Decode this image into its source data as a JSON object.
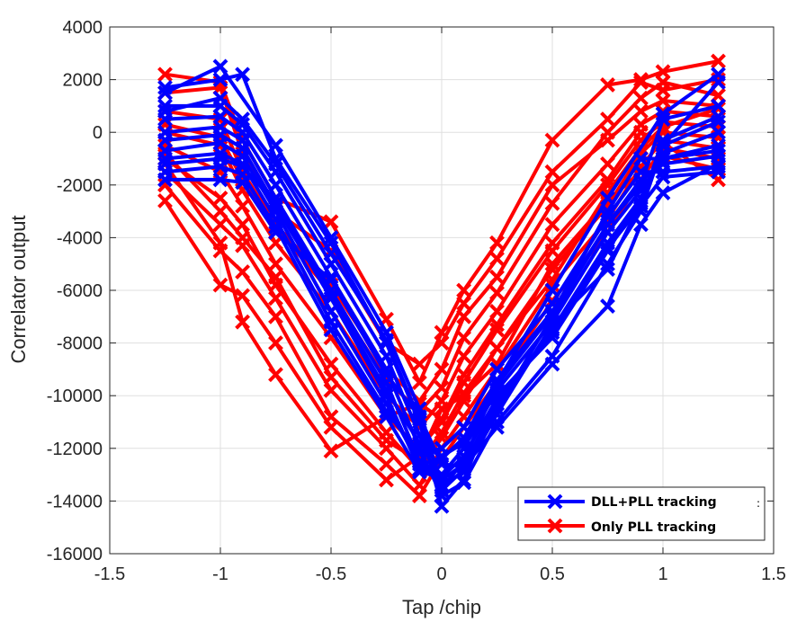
{
  "chart_data": {
    "type": "line",
    "title": "",
    "xlabel": "Tap /chip",
    "ylabel": "Correlator output",
    "xlim": [
      -1.5,
      1.5
    ],
    "ylim": [
      -16000,
      4000
    ],
    "xticks": [
      -1.5,
      -1,
      -0.5,
      0,
      0.5,
      1,
      1.5
    ],
    "xtick_labels": [
      "-1.5",
      "-1",
      "-0.5",
      "0",
      "0.5",
      "1",
      "1.5"
    ],
    "yticks": [
      4000,
      2000,
      0,
      -2000,
      -4000,
      -6000,
      -8000,
      -10000,
      -12000,
      -14000,
      -16000
    ],
    "ytick_labels": [
      "4000",
      "2000",
      "0",
      "-2000",
      "-4000",
      "-6000",
      "-8000",
      "-10000",
      "-12000",
      "-14000",
      "-16000"
    ],
    "grid": true,
    "legend_position": "bottom-right",
    "legend_extra_mark": ":",
    "series": [
      {
        "name": "DLL+PLL tracking",
        "color": "#0000ff",
        "marker": "x",
        "curves": [
          {
            "x": [
              -1.25,
              -1,
              -0.75,
              -0.5,
              -0.25,
              -0.1,
              0,
              0.1,
              0.25,
              0.5,
              0.75,
              1,
              1.25
            ],
            "y": [
              1500,
              2500,
              -500,
              -4000,
              -7600,
              -10500,
              -13500,
              -12500,
              -9500,
              -6000,
              -2500,
              700,
              2200
            ]
          },
          {
            "x": [
              -1.25,
              -1,
              -0.9,
              -0.75,
              -0.5,
              -0.25,
              -0.1,
              0,
              0.1,
              0.25,
              0.5,
              0.75,
              0.9,
              1,
              1.25
            ],
            "y": [
              1700,
              2000,
              2200,
              -1000,
              -4200,
              -8000,
              -11000,
              -14200,
              -13200,
              -10000,
              -7800,
              -4500,
              -2500,
              -500,
              1900
            ]
          },
          {
            "x": [
              -1.25,
              -1,
              -0.9,
              -0.75,
              -0.5,
              -0.25,
              -0.1,
              0,
              0.1,
              0.25,
              0.5,
              0.75,
              0.9,
              1,
              1.25
            ],
            "y": [
              1000,
              1000,
              300,
              -1500,
              -5000,
              -8500,
              -11500,
              -13600,
              -12800,
              -10500,
              -7000,
              -3500,
              -2000,
              500,
              1000
            ]
          },
          {
            "x": [
              -1.25,
              -1,
              -0.9,
              -0.75,
              -0.5,
              -0.25,
              -0.1,
              0,
              0.1,
              0.25,
              0.5,
              0.75,
              0.9,
              1,
              1.25
            ],
            "y": [
              500,
              600,
              0,
              -2000,
              -5500,
              -9000,
              -12000,
              -13800,
              -13300,
              -11000,
              -8500,
              -5000,
              -3000,
              -500,
              400
            ]
          },
          {
            "x": [
              -1.25,
              -1,
              -0.9,
              -0.75,
              -0.5,
              -0.25,
              -0.1,
              0,
              0.1,
              0.25,
              0.5,
              0.75,
              0.9,
              1,
              1.25
            ],
            "y": [
              0,
              200,
              -300,
              -2500,
              -6000,
              -9500,
              -12500,
              -13200,
              -12600,
              -10300,
              -7500,
              -4200,
              -2500,
              -800,
              0
            ]
          },
          {
            "x": [
              -1.25,
              -1,
              -0.9,
              -0.75,
              -0.5,
              -0.25,
              -0.1,
              0,
              0.1,
              0.25,
              0.5,
              0.75,
              0.9,
              1,
              1.25
            ],
            "y": [
              -300,
              -100,
              -600,
              -2800,
              -6300,
              -10000,
              -12800,
              -13000,
              -12000,
              -9800,
              -7200,
              -3800,
              -2200,
              -1000,
              -500
            ]
          },
          {
            "x": [
              -1.25,
              -1,
              -0.9,
              -0.75,
              -0.5,
              -0.25,
              -0.1,
              0,
              0.1,
              0.25,
              0.5,
              0.75,
              0.9,
              1,
              1.25
            ],
            "y": [
              -700,
              -400,
              -900,
              -3000,
              -6800,
              -10300,
              -12600,
              -12400,
              -11600,
              -9400,
              -6800,
              -3500,
              -1800,
              -1200,
              -900
            ]
          },
          {
            "x": [
              -1.25,
              -1,
              -0.9,
              -0.75,
              -0.5,
              -0.25,
              -0.1,
              0,
              0.1,
              0.25,
              0.5,
              0.75,
              0.9,
              1,
              1.25
            ],
            "y": [
              -1000,
              -800,
              -1200,
              -3300,
              -7200,
              -10600,
              -12200,
              -12000,
              -11200,
              -9000,
              -6500,
              -3200,
              -1500,
              -1500,
              -1300
            ]
          },
          {
            "x": [
              -1.25,
              -1,
              -0.9,
              -0.75,
              -0.5,
              -0.25,
              -0.1,
              0,
              0.1,
              0.25,
              0.5,
              0.75,
              0.9,
              1,
              1.25
            ],
            "y": [
              -1500,
              -1300,
              -1600,
              -3600,
              -7500,
              -10800,
              -12900,
              -13100,
              -12300,
              -10100,
              -7600,
              -4400,
              -2800,
              -1700,
              -1500
            ]
          },
          {
            "x": [
              -1.25,
              -1,
              -0.9,
              -0.75,
              -0.5,
              -0.25,
              -0.1,
              0,
              0.1,
              0.25,
              0.5,
              0.75,
              0.9,
              1,
              1.25
            ],
            "y": [
              -1800,
              -1800,
              -1900,
              -3800,
              -5600,
              -9200,
              -10800,
              -12600,
              -12700,
              -11200,
              -8800,
              -6600,
              -3500,
              -2300,
              -1200
            ]
          },
          {
            "x": [
              -1.25,
              -1,
              -0.9,
              -0.75,
              -0.5,
              -0.25,
              -0.1,
              0,
              0.1,
              0.25,
              0.5,
              0.75,
              0.9,
              1,
              1.25
            ],
            "y": [
              800,
              1300,
              500,
              -1200,
              -4600,
              -7900,
              -10900,
              -13400,
              -12900,
              -10700,
              -7300,
              -5200,
              -2700,
              -300,
              600
            ]
          },
          {
            "x": [
              -1.25,
              -1,
              -0.9,
              -0.75,
              -0.5,
              -0.25,
              -0.1,
              0,
              0.1,
              0.25,
              0.5,
              0.75,
              0.9,
              1,
              1.25
            ],
            "y": [
              -1200,
              -1000,
              -1300,
              -2700,
              -6200,
              -9800,
              -11800,
              -12300,
              -11800,
              -9600,
              -6900,
              -3000,
              -1000,
              -1000,
              -700
            ]
          }
        ]
      },
      {
        "name": "Only PLL tracking",
        "color": "#ff0000",
        "marker": "x",
        "curves": [
          {
            "x": [
              -1.25,
              -1,
              -0.9,
              -0.75,
              -0.5,
              -0.25,
              -0.1,
              0,
              0.1,
              0.25,
              0.5,
              0.75,
              0.9,
              1,
              1.25
            ],
            "y": [
              2200,
              1900,
              -300,
              -2500,
              -3400,
              -7100,
              -9500,
              -7600,
              -6000,
              -4200,
              -300,
              1800,
              2000,
              2300,
              2700
            ]
          },
          {
            "x": [
              -1.25,
              -1,
              -0.9,
              -0.75,
              -0.5,
              -0.25,
              -0.1,
              0,
              0.1,
              0.25,
              0.5,
              0.75,
              0.9,
              1,
              1.25
            ],
            "y": [
              1500,
              1700,
              -800,
              -3000,
              -4500,
              -8000,
              -8800,
              -8000,
              -6500,
              -4800,
              -1500,
              500,
              1900,
              1600,
              2000
            ]
          },
          {
            "x": [
              -1.25,
              -1,
              -0.9,
              -0.75,
              -0.5,
              -0.25,
              -0.1,
              0,
              0.1,
              0.25,
              0.5,
              0.75,
              0.9,
              1,
              1.25
            ],
            "y": [
              800,
              500,
              -1500,
              -3500,
              -5800,
              -9000,
              -10200,
              -9000,
              -7000,
              -5500,
              -2000,
              -300,
              800,
              1200,
              1000
            ]
          },
          {
            "x": [
              -1.25,
              -1,
              -0.9,
              -0.75,
              -0.5,
              -0.25,
              -0.1,
              0,
              0.1,
              0.25,
              0.5,
              0.75,
              0.9,
              1,
              1.25
            ],
            "y": [
              0,
              -500,
              -2200,
              -4200,
              -6800,
              -10000,
              -11200,
              -10200,
              -8500,
              -6800,
              -3500,
              -1200,
              300,
              800,
              600
            ]
          },
          {
            "x": [
              -1.25,
              -1,
              -0.9,
              -0.75,
              -0.5,
              -0.25,
              -0.1,
              0,
              0.1,
              0.25,
              0.5,
              0.75,
              0.9,
              1,
              1.25
            ],
            "y": [
              -500,
              -1500,
              -2800,
              -5000,
              -7800,
              -10800,
              -12000,
              -11000,
              -9500,
              -7500,
              -4500,
              -2000,
              -300,
              400,
              200
            ]
          },
          {
            "x": [
              -1.25,
              -1,
              -0.9,
              -0.75,
              -0.5,
              -0.25,
              -0.1,
              0,
              0.1,
              0.25,
              0.5,
              0.75,
              0.9,
              1,
              1.25
            ],
            "y": [
              -1000,
              -2500,
              -3500,
              -5800,
              -8800,
              -11400,
              -12800,
              -11600,
              -10200,
              -8200,
              -5200,
              -2800,
              -800,
              0,
              -200
            ]
          },
          {
            "x": [
              -1.25,
              -1,
              -0.9,
              -0.75,
              -0.5,
              -0.25,
              -0.1,
              0,
              0.1,
              0.25,
              0.5,
              0.75,
              0.9,
              1,
              1.25
            ],
            "y": [
              -1500,
              -3500,
              -4300,
              -6300,
              -9800,
              -12000,
              -13400,
              -12000,
              -10800,
              -9000,
              -5800,
              -3300,
              -1300,
              -300,
              -600
            ]
          },
          {
            "x": [
              -1.25,
              -1,
              -0.9,
              -0.75,
              -0.5,
              -0.25,
              -0.1,
              0,
              0.1,
              0.25,
              0.5,
              0.75,
              0.9,
              1,
              1.25
            ],
            "y": [
              -2000,
              -4500,
              -5300,
              -7000,
              -10800,
              -12600,
              -13800,
              -12400,
              -11200,
              -9500,
              -6400,
              -3800,
              -1800,
              -600,
              -1000
            ]
          },
          {
            "x": [
              -1.25,
              -1,
              -0.9,
              -0.75,
              -0.5,
              -0.25,
              -0.1,
              0,
              0.1,
              0.25,
              0.5,
              0.75,
              0.9,
              1,
              1.25
            ],
            "y": [
              -2600,
              -5800,
              -6200,
              -8000,
              -11200,
              -13200,
              -12300,
              -10500,
              -10000,
              -8800,
              -5000,
              -2600,
              -1500,
              -900,
              -1400
            ]
          },
          {
            "x": [
              -1.25,
              -1,
              -0.9,
              -0.75,
              -0.5,
              -0.25,
              -0.1,
              0,
              0.1,
              0.25,
              0.5,
              0.75,
              0.9,
              1,
              1.25
            ],
            "y": [
              -1200,
              -4200,
              -7200,
              -9200,
              -12100,
              -10800,
              -10300,
              -10900,
              -9200,
              -7300,
              -4200,
              -1800,
              0,
              -400,
              -1800
            ]
          },
          {
            "x": [
              -1.25,
              -1,
              -0.9,
              -0.75,
              -0.5,
              -0.25,
              -0.1,
              0,
              0.1,
              0.25,
              0.5,
              0.75,
              0.9,
              1,
              1.25
            ],
            "y": [
              300,
              -200,
              -1800,
              -3600,
              -6100,
              -9400,
              -10600,
              -9700,
              -7800,
              -6100,
              -2700,
              0,
              1300,
              1900,
              1400
            ]
          },
          {
            "x": [
              -1.25,
              -1,
              -0.9,
              -0.75,
              -0.5,
              -0.25,
              -0.1,
              0,
              0.1,
              0.25,
              0.5,
              0.75,
              0.9,
              1,
              1.25
            ],
            "y": [
              -800,
              -3000,
              -4000,
              -5500,
              -9300,
              -11700,
              -12500,
              -11400,
              -9900,
              -8200,
              -5600,
              -2300,
              -600,
              200,
              900
            ]
          }
        ]
      }
    ]
  }
}
